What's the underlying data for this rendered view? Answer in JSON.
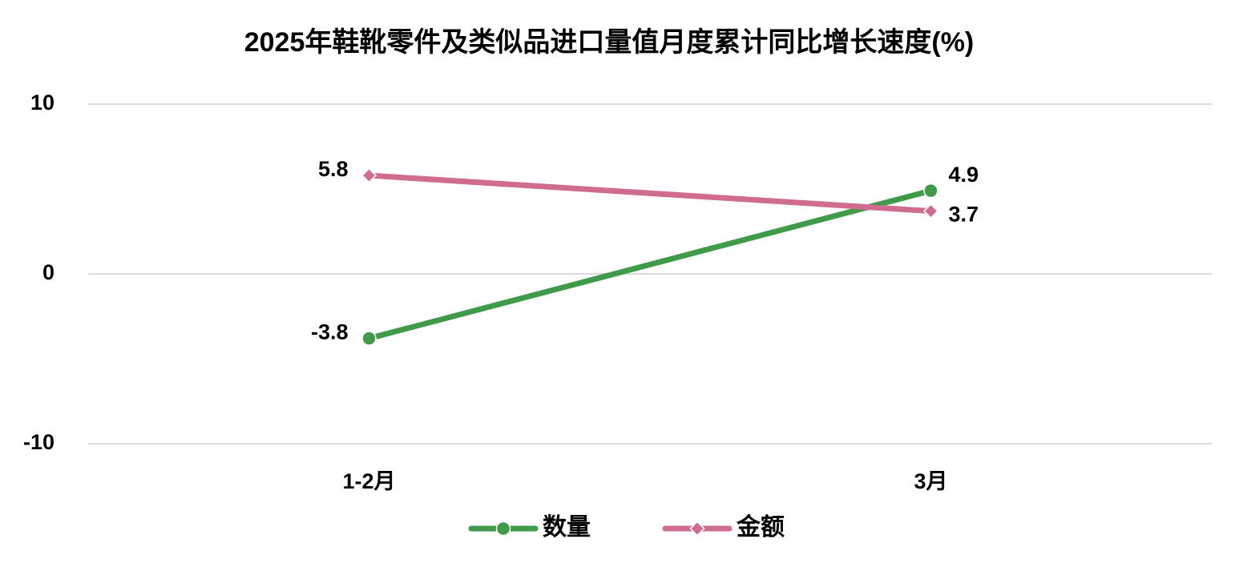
{
  "chart_data": {
    "type": "line",
    "title": "2025年鞋靴零件及类似品进口量值月度累计同比增长速度(%)",
    "categories": [
      "1-2月",
      "3月"
    ],
    "series": [
      {
        "name": "数量",
        "color": "#3f9a4a",
        "marker": "circle",
        "values": [
          -3.8,
          4.9
        ]
      },
      {
        "name": "金额",
        "color": "#d06d8e",
        "marker": "diamond",
        "values": [
          5.8,
          3.7
        ]
      }
    ],
    "ylim": [
      -10,
      10
    ],
    "yticks": [
      -10,
      0,
      10
    ],
    "grid": true,
    "legend": "bottom"
  }
}
